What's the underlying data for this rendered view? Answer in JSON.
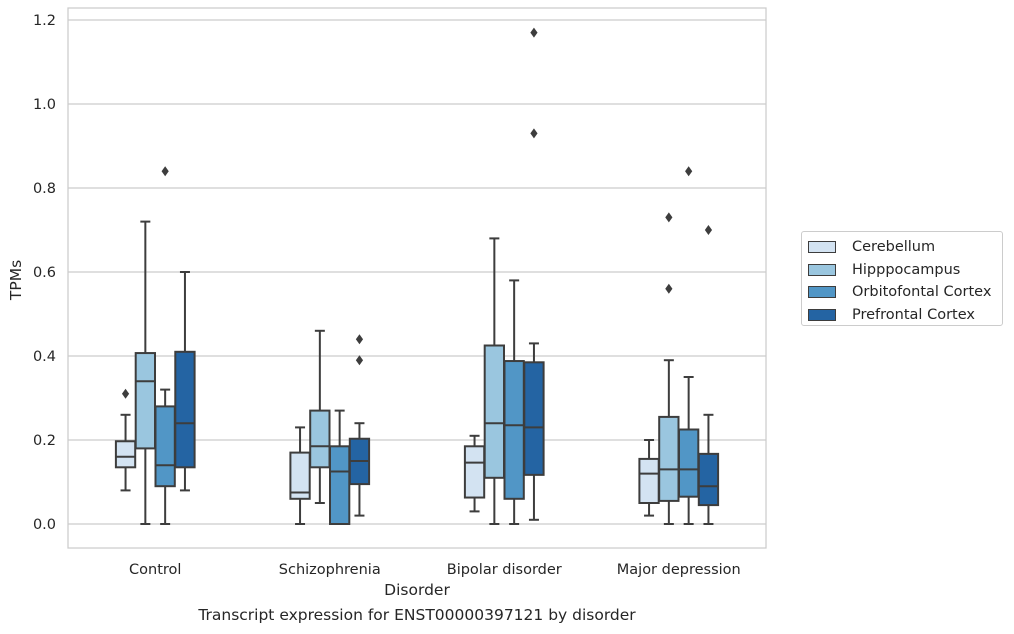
{
  "caption": "Transcript expression for ENST00000397121 by disorder",
  "chart_data": {
    "type": "box",
    "xlabel": "Disorder",
    "ylabel": "TPMs",
    "categories": [
      "Control",
      "Schizophrenia",
      "Bipolar disorder",
      "Major depression"
    ],
    "ylim": [
      -0.057,
      1.23
    ],
    "yticks": [
      0.0,
      0.2,
      0.4,
      0.6,
      0.8,
      1.0,
      1.2
    ],
    "ytick_labels": [
      "0.0",
      "0.2",
      "0.4",
      "0.6",
      "0.8",
      "1.0",
      "1.2"
    ],
    "grid": "horizontal",
    "legend_position": "right",
    "series": [
      {
        "name": "Cerebellum",
        "color": "#d3e3f2",
        "boxes": [
          {
            "q1": 0.135,
            "median": 0.16,
            "q3": 0.197,
            "whisker_low": 0.08,
            "whisker_high": 0.26,
            "outliers": [
              0.31
            ]
          },
          {
            "q1": 0.06,
            "median": 0.075,
            "q3": 0.17,
            "whisker_low": 0.0,
            "whisker_high": 0.23,
            "outliers": []
          },
          {
            "q1": 0.063,
            "median": 0.146,
            "q3": 0.185,
            "whisker_low": 0.03,
            "whisker_high": 0.21,
            "outliers": []
          },
          {
            "q1": 0.05,
            "median": 0.12,
            "q3": 0.155,
            "whisker_low": 0.02,
            "whisker_high": 0.2,
            "outliers": []
          }
        ]
      },
      {
        "name": "Hipppocampus",
        "color": "#9ac6df",
        "boxes": [
          {
            "q1": 0.18,
            "median": 0.34,
            "q3": 0.407,
            "whisker_low": 0.0,
            "whisker_high": 0.72,
            "outliers": []
          },
          {
            "q1": 0.135,
            "median": 0.185,
            "q3": 0.27,
            "whisker_low": 0.05,
            "whisker_high": 0.46,
            "outliers": []
          },
          {
            "q1": 0.11,
            "median": 0.24,
            "q3": 0.425,
            "whisker_low": 0.0,
            "whisker_high": 0.68,
            "outliers": []
          },
          {
            "q1": 0.055,
            "median": 0.13,
            "q3": 0.255,
            "whisker_low": 0.0,
            "whisker_high": 0.39,
            "outliers": [
              0.56,
              0.73
            ]
          }
        ]
      },
      {
        "name": "Orbitofontal Cortex",
        "color": "#5196c6",
        "boxes": [
          {
            "q1": 0.09,
            "median": 0.14,
            "q3": 0.28,
            "whisker_low": 0.0,
            "whisker_high": 0.32,
            "outliers": [
              0.84
            ]
          },
          {
            "q1": 0.0,
            "median": 0.125,
            "q3": 0.185,
            "whisker_low": 0.0,
            "whisker_high": 0.27,
            "outliers": []
          },
          {
            "q1": 0.06,
            "median": 0.235,
            "q3": 0.388,
            "whisker_low": 0.0,
            "whisker_high": 0.58,
            "outliers": []
          },
          {
            "q1": 0.065,
            "median": 0.13,
            "q3": 0.225,
            "whisker_low": 0.0,
            "whisker_high": 0.35,
            "outliers": [
              0.84
            ]
          }
        ]
      },
      {
        "name": "Prefrontal Cortex",
        "color": "#2464a3",
        "boxes": [
          {
            "q1": 0.135,
            "median": 0.24,
            "q3": 0.41,
            "whisker_low": 0.08,
            "whisker_high": 0.6,
            "outliers": []
          },
          {
            "q1": 0.095,
            "median": 0.15,
            "q3": 0.203,
            "whisker_low": 0.02,
            "whisker_high": 0.24,
            "outliers": [
              0.39,
              0.44
            ]
          },
          {
            "q1": 0.117,
            "median": 0.23,
            "q3": 0.385,
            "whisker_low": 0.01,
            "whisker_high": 0.43,
            "outliers": [
              0.93,
              1.17
            ]
          },
          {
            "q1": 0.045,
            "median": 0.09,
            "q3": 0.167,
            "whisker_low": 0.0,
            "whisker_high": 0.26,
            "outliers": [
              0.7
            ]
          }
        ]
      }
    ]
  }
}
